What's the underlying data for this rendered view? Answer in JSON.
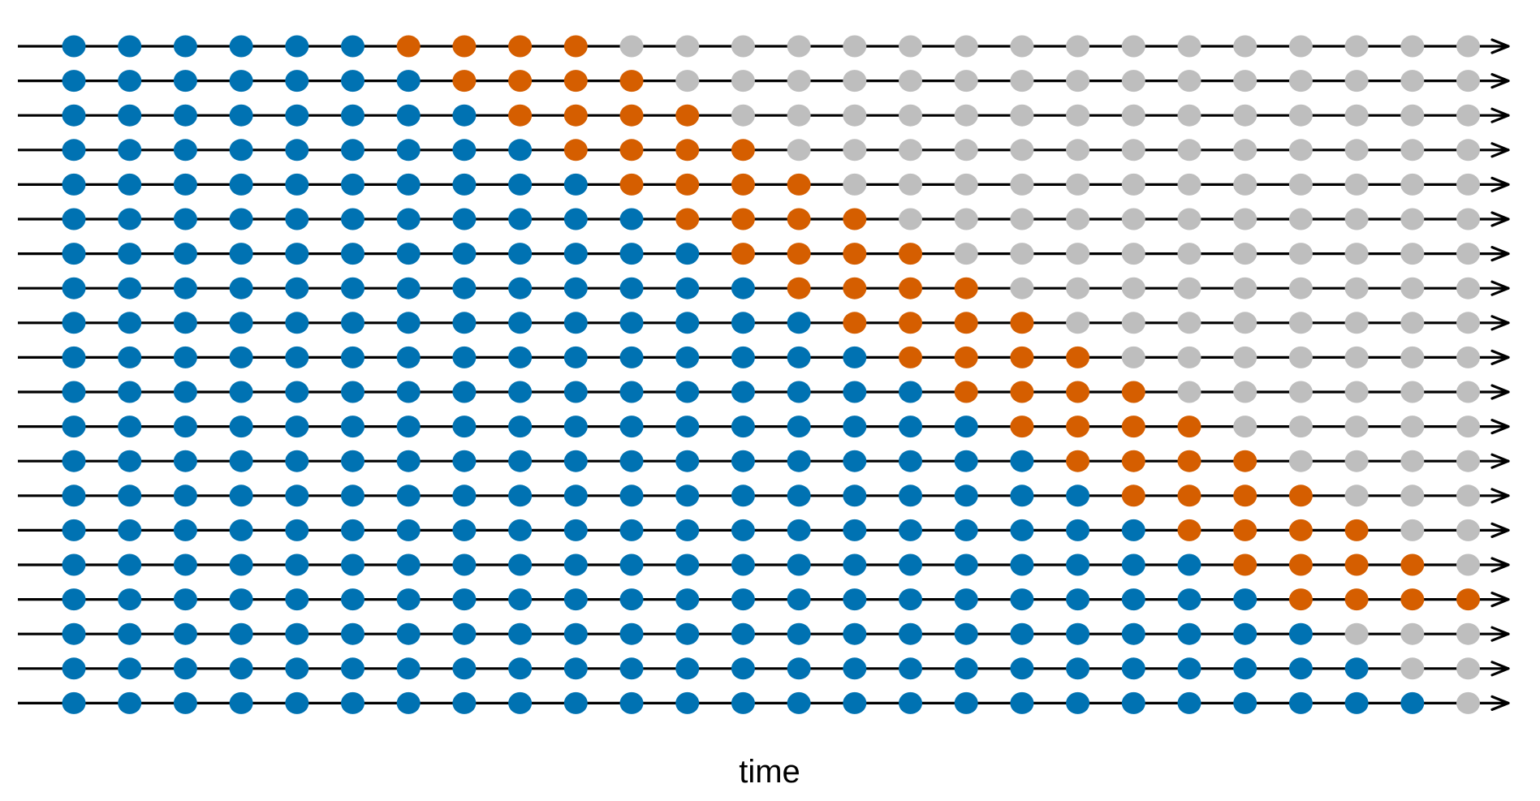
{
  "chart_data": {
    "type": "scatter",
    "title": "",
    "xlabel": "time",
    "ylabel": "",
    "x_points": 26,
    "row_count": 20,
    "rows": [
      {
        "train_end": 6,
        "forecast_end": 10
      },
      {
        "train_end": 7,
        "forecast_end": 11
      },
      {
        "train_end": 8,
        "forecast_end": 12
      },
      {
        "train_end": 9,
        "forecast_end": 13
      },
      {
        "train_end": 10,
        "forecast_end": 14
      },
      {
        "train_end": 11,
        "forecast_end": 15
      },
      {
        "train_end": 12,
        "forecast_end": 16
      },
      {
        "train_end": 13,
        "forecast_end": 17
      },
      {
        "train_end": 14,
        "forecast_end": 18
      },
      {
        "train_end": 15,
        "forecast_end": 19
      },
      {
        "train_end": 16,
        "forecast_end": 20
      },
      {
        "train_end": 17,
        "forecast_end": 21
      },
      {
        "train_end": 18,
        "forecast_end": 22
      },
      {
        "train_end": 19,
        "forecast_end": 23
      },
      {
        "train_end": 20,
        "forecast_end": 24
      },
      {
        "train_end": 21,
        "forecast_end": 25
      },
      {
        "train_end": 22,
        "forecast_end": 26
      },
      {
        "train_end": 23,
        "forecast_end": 23
      },
      {
        "train_end": 24,
        "forecast_end": 24
      },
      {
        "train_end": 25,
        "forecast_end": 25
      }
    ],
    "colors": {
      "train": "#0072B2",
      "forecast": "#D55E00",
      "unused": "#BEBEBE",
      "axis": "#000000"
    }
  }
}
